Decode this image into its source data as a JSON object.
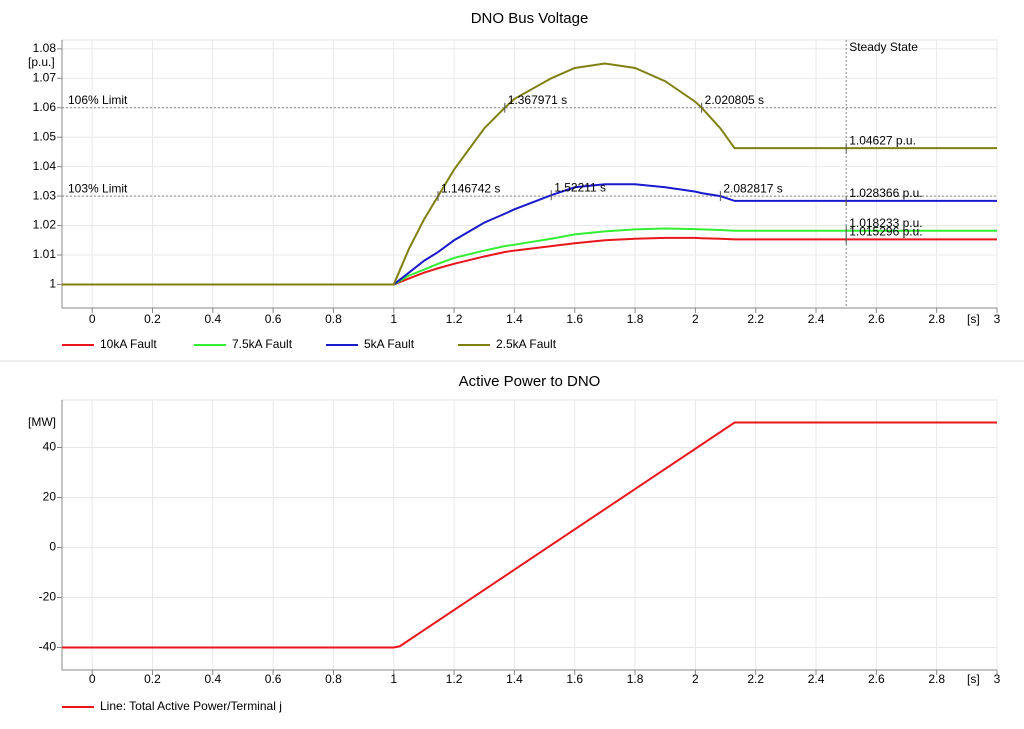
{
  "chart_data": [
    {
      "type": "line",
      "title": "DNO Bus Voltage",
      "y_unit": "[p.u.]",
      "x_unit": "[s]",
      "xlim": [
        -0.1,
        3
      ],
      "xticks": [
        0,
        0.2,
        0.4,
        0.6,
        0.8,
        1,
        1.2,
        1.4,
        1.6,
        1.8,
        2,
        2.2,
        2.4,
        2.6,
        2.8,
        3
      ],
      "ylim": [
        0.992,
        1.083
      ],
      "yticks": [
        1,
        1.01,
        1.02,
        1.03,
        1.04,
        1.05,
        1.06,
        1.07,
        1.08
      ],
      "grid": true,
      "x": [
        -0.1,
        0,
        0.5,
        1.0,
        1.05,
        1.1,
        1.146742,
        1.2,
        1.3,
        1.367971,
        1.4,
        1.52211,
        1.6,
        1.7,
        1.8,
        1.9,
        2.0,
        2.020805,
        2.082817,
        2.13,
        2.5,
        3.0
      ],
      "series": [
        {
          "name": "10kA Fault",
          "color": "#e8161b",
          "values": [
            1,
            1,
            1,
            1,
            1.002,
            1.004,
            1.0055,
            1.007,
            1.0095,
            1.011,
            1.0115,
            1.013,
            1.014,
            1.015,
            1.0155,
            1.0158,
            1.0158,
            1.0157,
            1.0155,
            1.015296,
            1.015296,
            1.015296
          ]
        },
        {
          "name": "7.5kA Fault",
          "color": "#33ee33",
          "values": [
            1,
            1,
            1,
            1,
            1.003,
            1.005,
            1.007,
            1.009,
            1.0115,
            1.013,
            1.0135,
            1.0155,
            1.017,
            1.018,
            1.0187,
            1.019,
            1.0188,
            1.0187,
            1.0185,
            1.018233,
            1.018233,
            1.018233
          ]
        },
        {
          "name": "5kA Fault",
          "color": "#1a1acc",
          "values": [
            1,
            1,
            1,
            1,
            1.004,
            1.008,
            1.011,
            1.015,
            1.021,
            1.024,
            1.0255,
            1.0303,
            1.033,
            1.034,
            1.034,
            1.033,
            1.0315,
            1.031,
            1.03,
            1.028366,
            1.028366,
            1.028366
          ]
        },
        {
          "name": "2.5kA Fault",
          "color": "#808010",
          "values": [
            1,
            1,
            1,
            1,
            1.012,
            1.022,
            1.03,
            1.039,
            1.053,
            1.06,
            1.063,
            1.07,
            1.0735,
            1.075,
            1.0735,
            1.069,
            1.062,
            1.06,
            1.053,
            1.04627,
            1.04627,
            1.04627
          ]
        }
      ],
      "reference_lines": [
        {
          "y": 1.06,
          "label": "106% Limit",
          "color": "#000000"
        },
        {
          "y": 1.03,
          "label": "103% Limit",
          "color": "#1a237e"
        }
      ],
      "vertical_lines": [
        {
          "x": 2.5,
          "label": "Steady State",
          "color": "#1a237e"
        }
      ],
      "annotations": [
        {
          "x": 1.146742,
          "y": 1.03,
          "label": "1.146742 s",
          "color": "#1a237e"
        },
        {
          "x": 1.52211,
          "y": 1.0303,
          "label": "1.52211 s",
          "color": "#1a237e"
        },
        {
          "x": 2.082817,
          "y": 1.03,
          "label": "2.082817 s",
          "color": "#1a237e"
        },
        {
          "x": 1.367971,
          "y": 1.06,
          "label": "1.367971 s",
          "color": "#000000"
        },
        {
          "x": 2.020805,
          "y": 1.06,
          "label": "2.020805 s",
          "color": "#000000"
        },
        {
          "x": 2.5,
          "y": 1.04627,
          "label": "1.04627 p.u.",
          "color": "#1a237e"
        },
        {
          "x": 2.5,
          "y": 1.028366,
          "label": "1.028366 p.u.",
          "color": "#1a237e"
        },
        {
          "x": 2.5,
          "y": 1.018233,
          "label": "1.018233 p.u.",
          "color": "#1a237e"
        },
        {
          "x": 2.5,
          "y": 1.015296,
          "label": "1.015296 p.u.",
          "color": "#1a237e"
        }
      ]
    },
    {
      "type": "line",
      "title": "Active Power to DNO",
      "y_unit": "[MW]",
      "x_unit": "[s]",
      "xlim": [
        -0.1,
        3
      ],
      "xticks": [
        0,
        0.2,
        0.4,
        0.6,
        0.8,
        1,
        1.2,
        1.4,
        1.6,
        1.8,
        2,
        2.2,
        2.4,
        2.6,
        2.8,
        3
      ],
      "ylim": [
        -49,
        59
      ],
      "yticks": [
        -40,
        -20,
        0,
        20,
        40
      ],
      "grid": true,
      "x": [
        -0.1,
        1.0,
        1.02,
        2.13,
        3.0
      ],
      "series": [
        {
          "name": "Line: Total Active Power/Terminal j",
          "color": "#e8161b",
          "values": [
            -40,
            -40,
            -39.5,
            50,
            50
          ]
        }
      ]
    }
  ]
}
